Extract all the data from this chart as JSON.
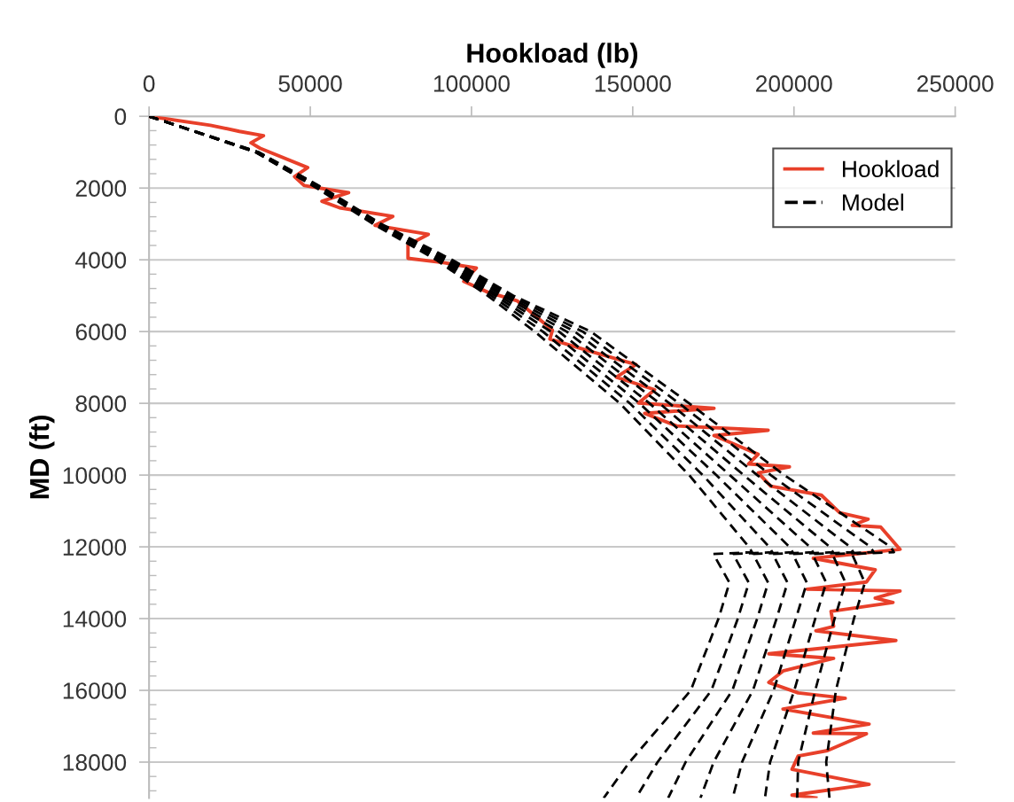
{
  "chart_data": {
    "type": "line",
    "xlabel": "Hookload (lb)",
    "ylabel": "MD (ft)",
    "xlim": [
      0,
      250000
    ],
    "xticks": [
      0,
      50000,
      100000,
      150000,
      200000,
      250000
    ],
    "ylim": [
      19000,
      0
    ],
    "yticks": [
      0,
      2000,
      4000,
      6000,
      8000,
      10000,
      12000,
      14000,
      16000,
      18000
    ],
    "grid": "y",
    "legend": "top right",
    "marker": "none",
    "series": [
      {
        "name": "Hookload",
        "color": "#e8402a",
        "line_style": "solid",
        "x": [
          0,
          19000,
          28000,
          35500,
          31600,
          34400,
          49200,
          45100,
          48100,
          61900,
          53600,
          59100,
          75600,
          70100,
          86600,
          80300,
          80300,
          91300,
          101500,
          97600,
          105000,
          114100,
          125100,
          124300,
          136100,
          151000,
          144900,
          156800,
          151800,
          175200,
          153700,
          163600,
          192000,
          175200,
          188900,
          185900,
          198600,
          188900,
          192800,
          208500,
          214200,
          223000,
          218100,
          226900,
          232900,
          206000,
          225200,
          222500,
          204100,
          232900,
          225200,
          230700,
          211500,
          212300,
          206800,
          231600,
          192200,
          212300,
          196600,
          192200,
          201300,
          215900,
          196600,
          223300,
          206000,
          222500,
          210400,
          201300,
          199400,
          223300,
          199400,
          206800
        ],
        "values": [
          0,
          250,
          420,
          540,
          740,
          890,
          1430,
          1680,
          1930,
          2130,
          2370,
          2550,
          2790,
          3040,
          3290,
          3590,
          3960,
          4080,
          4230,
          4600,
          4900,
          5140,
          5960,
          6210,
          6530,
          6920,
          7270,
          7620,
          7990,
          8140,
          8280,
          8630,
          8750,
          8900,
          9420,
          9690,
          9770,
          9940,
          10310,
          10560,
          11050,
          11230,
          11400,
          11450,
          12070,
          12320,
          12640,
          12980,
          13180,
          13230,
          13430,
          13550,
          13800,
          14220,
          14340,
          14610,
          14980,
          15110,
          15460,
          15780,
          16070,
          16220,
          16520,
          16940,
          17190,
          17210,
          17680,
          17830,
          18200,
          18620,
          18920,
          19000
        ]
      },
      {
        "name": "Model",
        "color": "#000000",
        "line_style": "dashed",
        "x": [
          0,
          33000,
          52000,
          69500,
          89000,
          105000,
          119600,
          146000,
          167500,
          186000,
          187000,
          175000,
          180000,
          176600,
          168000,
          149000,
          141000
        ],
        "values": [
          0,
          1000,
          2000,
          3000,
          4000,
          5000,
          6000,
          8000,
          10000,
          12000,
          12150,
          12200,
          13000,
          14000,
          16000,
          18000,
          19000
        ]
      },
      {
        "color": "#000000",
        "line_style": "dashed",
        "x": [
          0,
          33100,
          52300,
          69900,
          89700,
          106100,
          122100,
          149100,
          171700,
          192300,
          193300,
          181100,
          186000,
          182600,
          174400,
          157700,
          151000
        ],
        "values": [
          0,
          1000,
          2000,
          3000,
          4000,
          5000,
          6000,
          8000,
          10000,
          12000,
          12150,
          12200,
          13000,
          14000,
          16000,
          18000,
          19000
        ]
      },
      {
        "color": "#000000",
        "line_style": "dashed",
        "x": [
          0,
          33300,
          52600,
          70200,
          90400,
          107300,
          124600,
          152100,
          175900,
          198600,
          199600,
          187300,
          192000,
          188600,
          180900,
          166400,
          161000
        ],
        "values": [
          0,
          1000,
          2000,
          3000,
          4000,
          5000,
          6000,
          8000,
          10000,
          12000,
          12150,
          12200,
          13000,
          14000,
          16000,
          18000,
          19000
        ]
      },
      {
        "color": "#000000",
        "line_style": "dashed",
        "x": [
          0,
          33400,
          52900,
          70600,
          91100,
          108400,
          127100,
          155200,
          180100,
          204900,
          205900,
          193400,
          198000,
          194600,
          187300,
          175100,
          171000
        ],
        "values": [
          0,
          1000,
          2000,
          3000,
          4000,
          5000,
          6000,
          8000,
          10000,
          12000,
          12150,
          12200,
          13000,
          14000,
          16000,
          18000,
          19000
        ]
      },
      {
        "color": "#000000",
        "line_style": "dashed",
        "x": [
          0,
          33600,
          53100,
          70900,
          91900,
          109600,
          129500,
          158300,
          184400,
          211100,
          212100,
          199600,
          204000,
          200600,
          193700,
          183900,
          181000
        ],
        "values": [
          0,
          1000,
          2000,
          3000,
          4000,
          5000,
          6000,
          8000,
          10000,
          12000,
          12150,
          12200,
          13000,
          14000,
          16000,
          18000,
          19000
        ]
      },
      {
        "color": "#000000",
        "line_style": "dashed",
        "x": [
          0,
          33700,
          53400,
          71300,
          92600,
          110700,
          132000,
          161400,
          188600,
          217400,
          218400,
          205700,
          210000,
          206600,
          200100,
          192600,
          191000
        ],
        "values": [
          0,
          1000,
          2000,
          3000,
          4000,
          5000,
          6000,
          8000,
          10000,
          12000,
          12150,
          12200,
          13000,
          14000,
          16000,
          18000,
          19000
        ]
      },
      {
        "color": "#000000",
        "line_style": "dashed",
        "x": [
          0,
          33900,
          53700,
          71600,
          93300,
          111900,
          134500,
          164400,
          192800,
          223700,
          224700,
          211900,
          216000,
          212600,
          206600,
          201300,
          201000
        ],
        "values": [
          0,
          1000,
          2000,
          3000,
          4000,
          5000,
          6000,
          8000,
          10000,
          12000,
          12150,
          12200,
          13000,
          14000,
          16000,
          18000,
          19000
        ]
      },
      {
        "color": "#000000",
        "line_style": "dashed",
        "x": [
          0,
          34000,
          54000,
          72000,
          94000,
          113000,
          137000,
          167500,
          197000,
          230000,
          231000,
          218000,
          222000,
          218600,
          213000,
          210000,
          211000
        ],
        "values": [
          0,
          1000,
          2000,
          3000,
          4000,
          5000,
          6000,
          8000,
          10000,
          12000,
          12150,
          12200,
          13000,
          14000,
          16000,
          18000,
          19000
        ]
      }
    ]
  }
}
